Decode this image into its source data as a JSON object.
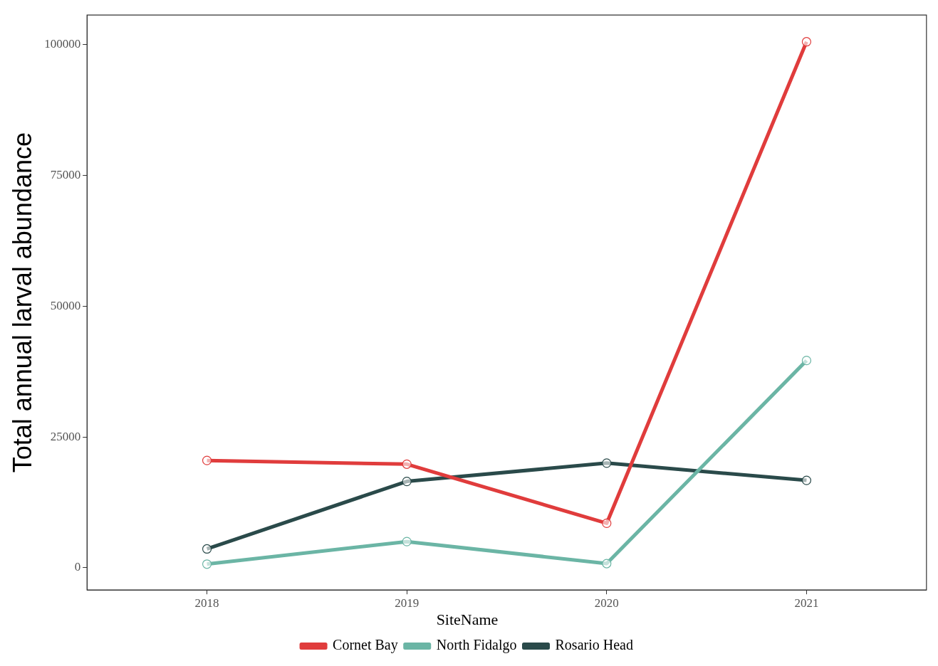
{
  "chart_data": {
    "type": "line",
    "ylabel": "Total annual larval abundance",
    "legend_title": "SiteName",
    "x": [
      2018,
      2019,
      2020,
      2021
    ],
    "series": [
      {
        "name": "Cornet Bay",
        "color": "#e03c3c",
        "values": [
          20500,
          19800,
          8500,
          100500
        ]
      },
      {
        "name": "North Fidalgo",
        "color": "#6bb5a5",
        "values": [
          700,
          5000,
          800,
          39600
        ]
      },
      {
        "name": "Rosario Head",
        "color": "#2a4a4a",
        "values": [
          3600,
          16500,
          20000,
          16700
        ]
      }
    ],
    "xlim": [
      2017.4,
      2021.6
    ],
    "xticks": [
      2018,
      2019,
      2020,
      2021
    ],
    "ylim": [
      -4250,
      105600
    ],
    "yticks": [
      0,
      25000,
      50000,
      75000,
      100000
    ],
    "grid": false,
    "legend": "bottom",
    "marker": "circle",
    "line_style": "solid"
  }
}
